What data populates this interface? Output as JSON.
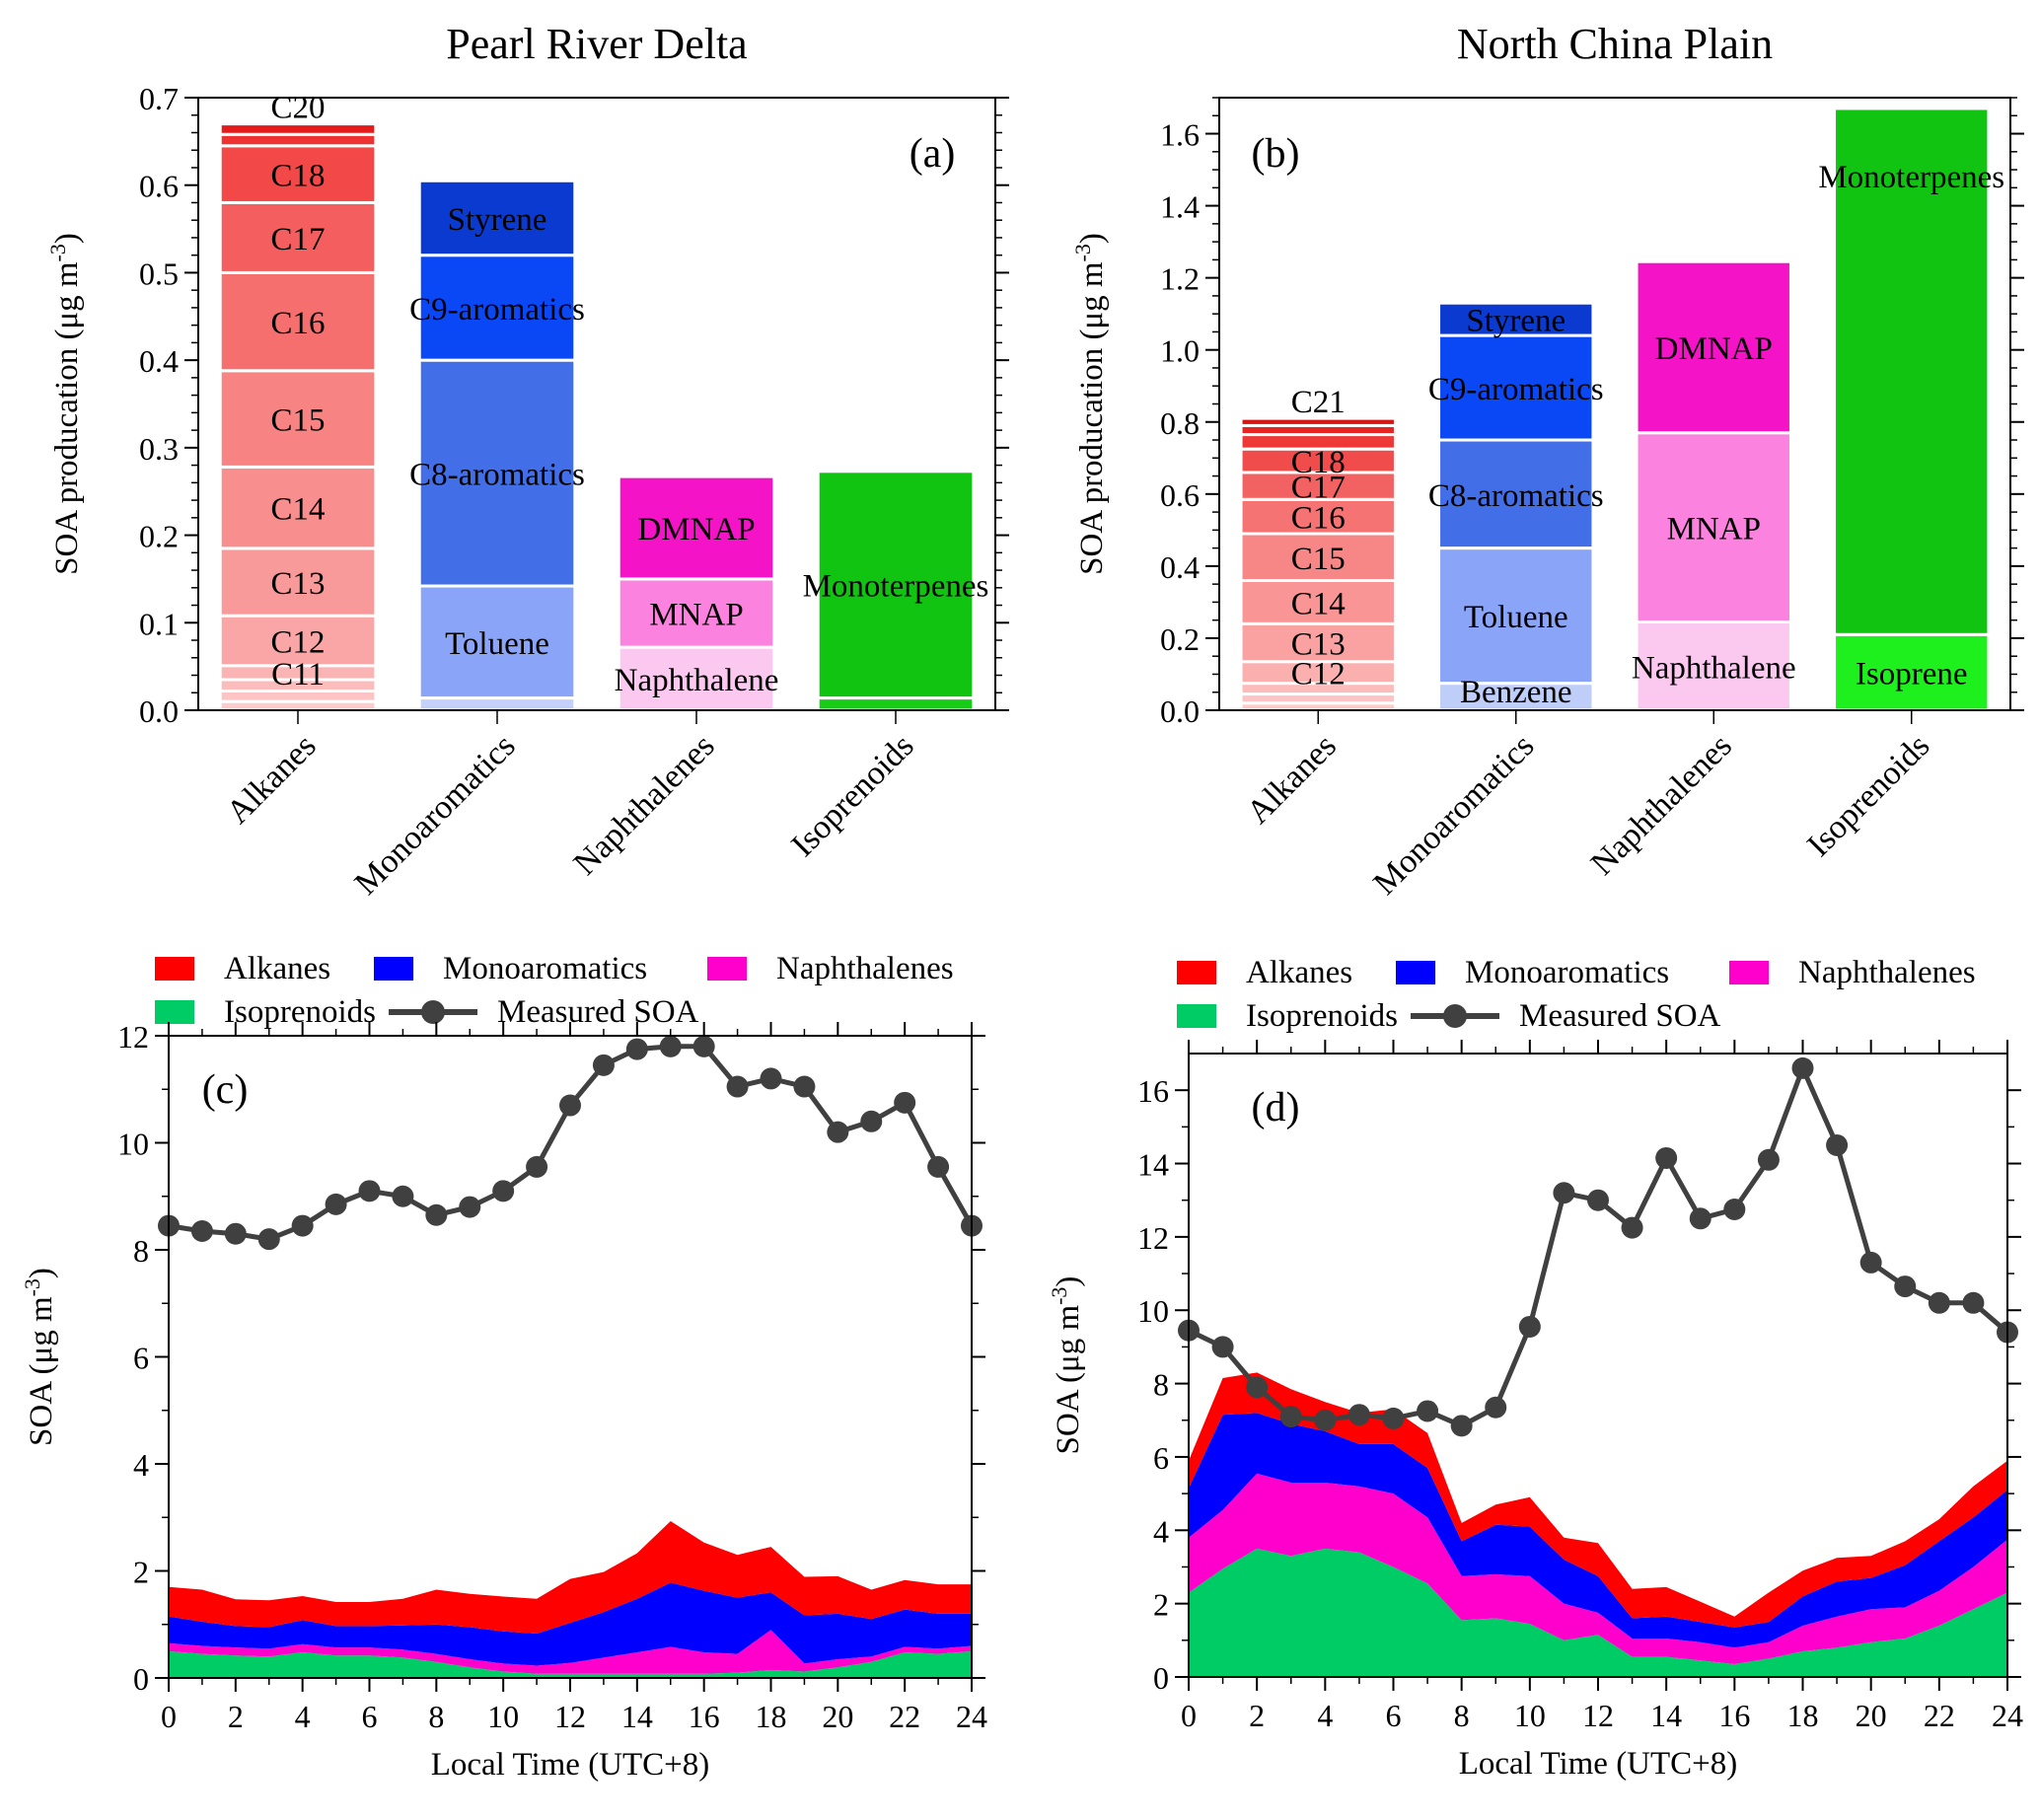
{
  "chart_data": [
    {
      "type": "bar",
      "stacked": true,
      "title": "Pearl River Delta",
      "panel_label": "(a)",
      "ylabel": "SOA producation (μg m",
      "ylabel_sup": "-3",
      "ylabel_close": ")",
      "ylim": [
        0,
        0.7
      ],
      "yticks": [
        "0.0",
        "0.1",
        "0.2",
        "0.3",
        "0.4",
        "0.5",
        "0.6",
        "0.7"
      ],
      "categories": [
        "Alkanes",
        "Monoaromatics",
        "Naphthalenes",
        "Isoprenoids"
      ],
      "bars": [
        {
          "category": "Alkanes",
          "segments": [
            {
              "label": "",
              "value": 0.01,
              "color": "#fdcccc"
            },
            {
              "label": "",
              "value": 0.012,
              "color": "#fcc4c4"
            },
            {
              "label": "",
              "value": 0.013,
              "color": "#fcbcbc"
            },
            {
              "label": "C11",
              "value": 0.016,
              "color": "#fbb4b4"
            },
            {
              "label": "C12",
              "value": 0.057,
              "color": "#faa6a6"
            },
            {
              "label": "C13",
              "value": 0.077,
              "color": "#f99a9a"
            },
            {
              "label": "C14",
              "value": 0.093,
              "color": "#f88e8e"
            },
            {
              "label": "C15",
              "value": 0.11,
              "color": "#f78383"
            },
            {
              "label": "C16",
              "value": 0.112,
              "color": "#f56f6f"
            },
            {
              "label": "C17",
              "value": 0.08,
              "color": "#f45e5e"
            },
            {
              "label": "C18",
              "value": 0.065,
              "color": "#f24848"
            },
            {
              "label": "",
              "value": 0.013,
              "color": "#ee3232"
            },
            {
              "label": "C20",
              "value": 0.012,
              "color": "#e41b1b"
            }
          ]
        },
        {
          "category": "Monoaromatics",
          "segments": [
            {
              "label": "",
              "value": 0.014,
              "color": "#c5d1fb"
            },
            {
              "label": "Toluene",
              "value": 0.128,
              "color": "#8aa4f8"
            },
            {
              "label": "C8-aromatics",
              "value": 0.258,
              "color": "#426ee8"
            },
            {
              "label": "C9-aromatics",
              "value": 0.12,
              "color": "#0a47f5"
            },
            {
              "label": "Styrene",
              "value": 0.085,
              "color": "#0b3ad0"
            }
          ]
        },
        {
          "category": "Naphthalenes",
          "segments": [
            {
              "label": "Naphthalene",
              "value": 0.072,
              "color": "#fbc8f0"
            },
            {
              "label": "MNAP",
              "value": 0.078,
              "color": "#fb82df"
            },
            {
              "label": "DMNAP",
              "value": 0.117,
              "color": "#f513c8"
            }
          ]
        },
        {
          "category": "Isoprenoids",
          "segments": [
            {
              "label": "",
              "value": 0.014,
              "color": "#16cc16"
            },
            {
              "label": "Monoterpenes",
              "value": 0.259,
              "color": "#12c412"
            }
          ]
        }
      ]
    },
    {
      "type": "bar",
      "stacked": true,
      "title": "North China Plain",
      "panel_label": "(b)",
      "ylabel": "SOA producation (μg m",
      "ylabel_sup": "-3",
      "ylabel_close": ")",
      "ylim": [
        0,
        1.7
      ],
      "yticks": [
        "0.0",
        "0.2",
        "0.4",
        "0.6",
        "0.8",
        "1.0",
        "1.2",
        "1.4",
        "1.6"
      ],
      "categories": [
        "Alkanes",
        "Monoaromatics",
        "Naphthalenes",
        "Isoprenoids"
      ],
      "bars": [
        {
          "category": "Alkanes",
          "segments": [
            {
              "label": "",
              "value": 0.02,
              "color": "#fdcccc"
            },
            {
              "label": "",
              "value": 0.025,
              "color": "#fcc4c4"
            },
            {
              "label": "",
              "value": 0.03,
              "color": "#fcbcbc"
            },
            {
              "label": "C12",
              "value": 0.06,
              "color": "#fbb0b0"
            },
            {
              "label": "C13",
              "value": 0.105,
              "color": "#faa2a2"
            },
            {
              "label": "C14",
              "value": 0.12,
              "color": "#f99595"
            },
            {
              "label": "C15",
              "value": 0.13,
              "color": "#f78686"
            },
            {
              "label": "C16",
              "value": 0.095,
              "color": "#f57373"
            },
            {
              "label": "C17",
              "value": 0.075,
              "color": "#f36262"
            },
            {
              "label": "C18",
              "value": 0.065,
              "color": "#f14c4c"
            },
            {
              "label": "",
              "value": 0.04,
              "color": "#ee3838"
            },
            {
              "label": "",
              "value": 0.025,
              "color": "#e72424"
            },
            {
              "label": "C21",
              "value": 0.02,
              "color": "#d71414"
            }
          ]
        },
        {
          "category": "Monoaromatics",
          "segments": [
            {
              "label": "Benzene",
              "value": 0.075,
              "color": "#bfcdf9"
            },
            {
              "label": "Toluene",
              "value": 0.375,
              "color": "#8aa4f8"
            },
            {
              "label": "C8-aromatics",
              "value": 0.3,
              "color": "#426ee8"
            },
            {
              "label": "C9-aromatics",
              "value": 0.29,
              "color": "#0a47f5"
            },
            {
              "label": "Styrene",
              "value": 0.09,
              "color": "#0b3ad0"
            }
          ]
        },
        {
          "category": "Naphthalenes",
          "segments": [
            {
              "label": "Naphthalene",
              "value": 0.245,
              "color": "#fbc8f0"
            },
            {
              "label": "MNAP",
              "value": 0.525,
              "color": "#fb82df"
            },
            {
              "label": "DMNAP",
              "value": 0.475,
              "color": "#f513c8"
            }
          ]
        },
        {
          "category": "Isoprenoids",
          "segments": [
            {
              "label": "Isoprene",
              "value": 0.21,
              "color": "#1ef01e"
            },
            {
              "label": "Monoterpenes",
              "value": 1.46,
              "color": "#12c412"
            }
          ]
        }
      ]
    },
    {
      "type": "area",
      "stacked": true,
      "panel_label": "(c)",
      "xlabel": "Local Time (UTC+8)",
      "ylabel": "SOA  (μg m",
      "ylabel_sup": "-3",
      "ylabel_close": ")",
      "xlim": [
        0,
        24
      ],
      "ylim": [
        0,
        12
      ],
      "xticks": [
        "0",
        "2",
        "4",
        "6",
        "8",
        "10",
        "12",
        "14",
        "16",
        "18",
        "20",
        "22",
        "24"
      ],
      "yticks": [
        "0",
        "2",
        "4",
        "6",
        "8",
        "10",
        "12"
      ],
      "x": [
        0,
        1,
        2,
        3,
        4,
        5,
        6,
        7,
        8,
        9,
        10,
        11,
        12,
        13,
        14,
        15,
        16,
        17,
        18,
        19,
        20,
        21,
        22,
        23,
        24
      ],
      "series": [
        {
          "name": "Isoprenoids",
          "color": "#00cc66",
          "values": [
            0.5,
            0.45,
            0.42,
            0.4,
            0.48,
            0.42,
            0.42,
            0.38,
            0.3,
            0.2,
            0.12,
            0.08,
            0.08,
            0.08,
            0.08,
            0.08,
            0.08,
            0.1,
            0.15,
            0.12,
            0.2,
            0.3,
            0.48,
            0.45,
            0.5
          ]
        },
        {
          "name": "Naphthalenes",
          "color": "#ff00cc",
          "values": [
            0.15,
            0.15,
            0.15,
            0.15,
            0.15,
            0.15,
            0.15,
            0.15,
            0.15,
            0.15,
            0.15,
            0.15,
            0.2,
            0.3,
            0.4,
            0.5,
            0.4,
            0.35,
            0.75,
            0.15,
            0.15,
            0.1,
            0.1,
            0.1,
            0.1
          ]
        },
        {
          "name": "Monoaromatics",
          "color": "#0000ff",
          "values": [
            0.5,
            0.45,
            0.4,
            0.4,
            0.45,
            0.4,
            0.4,
            0.45,
            0.55,
            0.6,
            0.6,
            0.6,
            0.75,
            0.85,
            1.0,
            1.2,
            1.15,
            1.05,
            0.7,
            0.9,
            0.85,
            0.7,
            0.7,
            0.65,
            0.6
          ]
        },
        {
          "name": "Alkanes",
          "color": "#ff0000",
          "values": [
            0.55,
            0.6,
            0.5,
            0.5,
            0.45,
            0.45,
            0.45,
            0.5,
            0.65,
            0.62,
            0.65,
            0.65,
            0.82,
            0.75,
            0.85,
            1.15,
            0.9,
            0.8,
            0.85,
            0.72,
            0.7,
            0.55,
            0.55,
            0.55,
            0.55
          ]
        }
      ],
      "line": {
        "name": "Measured SOA",
        "color": "#404040",
        "values": [
          8.45,
          8.35,
          8.3,
          8.2,
          8.45,
          8.85,
          9.1,
          9.0,
          8.65,
          8.8,
          9.1,
          9.55,
          10.7,
          11.45,
          11.75,
          11.8,
          11.8,
          11.05,
          11.2,
          11.05,
          10.2,
          10.4,
          10.75,
          9.55,
          8.45
        ]
      },
      "legend": [
        "Alkanes",
        "Monoaromatics",
        "Naphthalenes",
        "Isoprenoids",
        "Measured SOA"
      ]
    },
    {
      "type": "area",
      "stacked": true,
      "panel_label": "(d)",
      "xlabel": "Local Time (UTC+8)",
      "ylabel": "SOA  (μg m",
      "ylabel_sup": "-3",
      "ylabel_close": ")",
      "xlim": [
        0,
        24
      ],
      "ylim": [
        0,
        17
      ],
      "xticks": [
        "0",
        "2",
        "4",
        "6",
        "8",
        "10",
        "12",
        "14",
        "16",
        "18",
        "20",
        "22",
        "24"
      ],
      "yticks": [
        "0",
        "2",
        "4",
        "6",
        "8",
        "10",
        "12",
        "14",
        "16"
      ],
      "x": [
        0,
        1,
        2,
        3,
        4,
        5,
        6,
        7,
        8,
        9,
        10,
        11,
        12,
        13,
        14,
        15,
        16,
        17,
        18,
        19,
        20,
        21,
        22,
        23,
        24
      ],
      "series": [
        {
          "name": "Isoprenoids",
          "color": "#00cc66",
          "values": [
            2.3,
            2.95,
            3.5,
            3.3,
            3.5,
            3.4,
            3.0,
            2.55,
            1.55,
            1.6,
            1.45,
            1.0,
            1.15,
            0.55,
            0.55,
            0.45,
            0.35,
            0.5,
            0.7,
            0.8,
            0.95,
            1.05,
            1.4,
            1.85,
            2.3
          ]
        },
        {
          "name": "Naphthalenes",
          "color": "#ff00cc",
          "values": [
            1.5,
            1.6,
            2.05,
            2.0,
            1.8,
            1.8,
            2.0,
            1.8,
            1.2,
            1.2,
            1.3,
            1.0,
            0.6,
            0.5,
            0.5,
            0.5,
            0.45,
            0.45,
            0.7,
            0.85,
            0.9,
            0.85,
            0.95,
            1.15,
            1.45
          ]
        },
        {
          "name": "Monoaromatics",
          "color": "#0000ff",
          "values": [
            1.35,
            2.6,
            1.65,
            1.6,
            1.4,
            1.15,
            1.35,
            1.35,
            0.95,
            1.35,
            1.35,
            1.2,
            1.0,
            0.55,
            0.6,
            0.55,
            0.55,
            0.55,
            0.8,
            0.95,
            0.85,
            1.15,
            1.35,
            1.35,
            1.35
          ]
        },
        {
          "name": "Alkanes",
          "color": "#ff0000",
          "values": [
            0.75,
            1.0,
            1.1,
            0.95,
            0.8,
            0.85,
            0.95,
            0.95,
            0.5,
            0.55,
            0.8,
            0.6,
            0.9,
            0.8,
            0.8,
            0.55,
            0.3,
            0.8,
            0.7,
            0.65,
            0.6,
            0.65,
            0.6,
            0.85,
            0.8
          ]
        }
      ],
      "line": {
        "name": "Measured SOA",
        "color": "#404040",
        "values": [
          9.45,
          9.0,
          7.9,
          7.1,
          7.0,
          7.15,
          7.05,
          7.25,
          6.85,
          7.35,
          9.55,
          13.2,
          13.0,
          12.25,
          14.15,
          12.5,
          12.75,
          14.1,
          16.6,
          14.5,
          11.3,
          10.65,
          10.2,
          10.2,
          9.4
        ]
      },
      "legend": [
        "Alkanes",
        "Monoaromatics",
        "Naphthalenes",
        "Isoprenoids",
        "Measured SOA"
      ]
    }
  ]
}
